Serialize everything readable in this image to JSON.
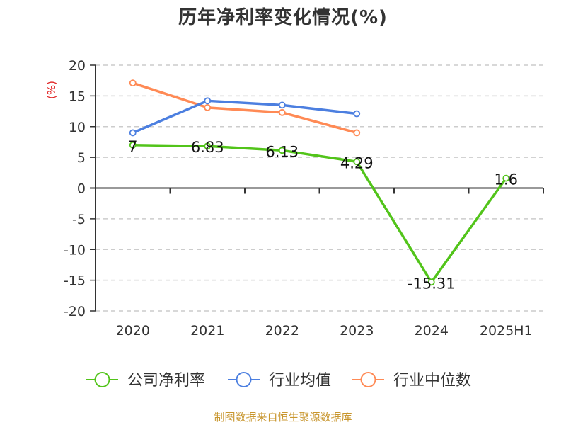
{
  "chart_data": {
    "type": "line",
    "title": "历年净利率变化情况(%)",
    "xlabel": "",
    "ylabel": "(%)",
    "ylim": [
      -20,
      20
    ],
    "yticks": [
      20,
      15,
      10,
      5,
      0,
      -5,
      -10,
      -15,
      -20
    ],
    "grid": true,
    "legend_position": "bottom",
    "categories": [
      "2020",
      "2021",
      "2022",
      "2023",
      "2024",
      "2025H1"
    ],
    "series": [
      {
        "name": "公司净利率",
        "color": "#52c41a",
        "values": [
          7,
          6.83,
          6.13,
          4.29,
          -15.31,
          1.6
        ],
        "labels": [
          "7",
          "6.83",
          "6.13",
          "4.29",
          "-15.31",
          "1.6"
        ]
      },
      {
        "name": "行业均值",
        "color": "#4c7fe0",
        "values": [
          9.0,
          14.2,
          13.5,
          12.1,
          null,
          null
        ]
      },
      {
        "name": "行业中位数",
        "color": "#ff8a55",
        "values": [
          17.1,
          13.1,
          12.3,
          9.0,
          null,
          null
        ]
      }
    ]
  },
  "title": "历年净利率变化情况(%)",
  "yaxis_unit": "(%)",
  "legend": [
    "公司净利率",
    "行业均值",
    "行业中位数"
  ],
  "source": "制图数据来自恒生聚源数据库"
}
